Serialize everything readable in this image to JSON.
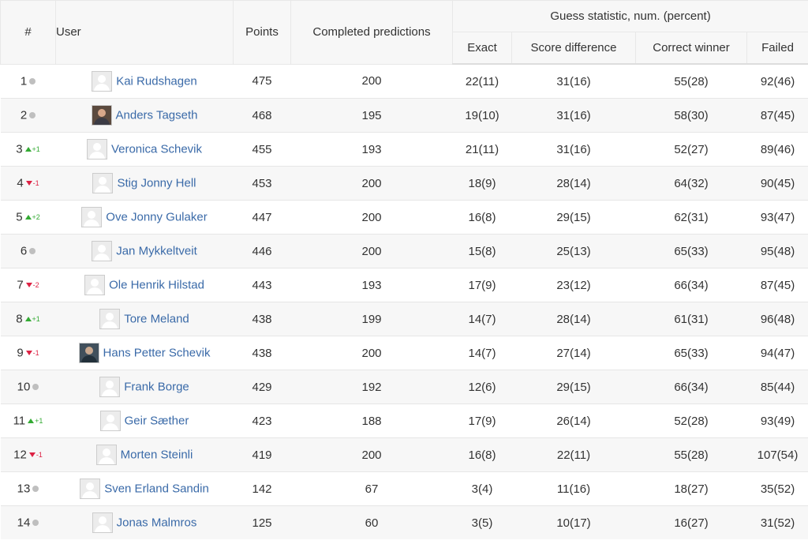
{
  "header": {
    "rank": "#",
    "user": "User",
    "points": "Points",
    "completed": "Completed predictions",
    "guess_group": "Guess statistic, num. (percent)",
    "exact": "Exact",
    "score_diff": "Score difference",
    "correct_winner": "Correct winner",
    "failed": "Failed"
  },
  "colors": {
    "up": "#33aa33",
    "down": "#dd2244",
    "same": "#bfbfbf",
    "link": "#3a6aa8"
  },
  "rows": [
    {
      "rank": "1",
      "trend": "same",
      "delta": "",
      "avatar": "default",
      "name": "Kai Rudshagen",
      "points": "475",
      "completed": "200",
      "exact": "22(11)",
      "score_diff": "31(16)",
      "winner": "55(28)",
      "failed": "92(46)"
    },
    {
      "rank": "2",
      "trend": "same",
      "delta": "",
      "avatar": "photo",
      "name": "Anders Tagseth",
      "points": "468",
      "completed": "195",
      "exact": "19(10)",
      "score_diff": "31(16)",
      "winner": "58(30)",
      "failed": "87(45)"
    },
    {
      "rank": "3",
      "trend": "up",
      "delta": "+1",
      "avatar": "default",
      "name": "Veronica Schevik",
      "points": "455",
      "completed": "193",
      "exact": "21(11)",
      "score_diff": "31(16)",
      "winner": "52(27)",
      "failed": "89(46)"
    },
    {
      "rank": "4",
      "trend": "down",
      "delta": "-1",
      "avatar": "default",
      "name": "Stig Jonny Hell",
      "points": "453",
      "completed": "200",
      "exact": "18(9)",
      "score_diff": "28(14)",
      "winner": "64(32)",
      "failed": "90(45)"
    },
    {
      "rank": "5",
      "trend": "up",
      "delta": "+2",
      "avatar": "default",
      "name": "Ove Jonny Gulaker",
      "points": "447",
      "completed": "200",
      "exact": "16(8)",
      "score_diff": "29(15)",
      "winner": "62(31)",
      "failed": "93(47)"
    },
    {
      "rank": "6",
      "trend": "same",
      "delta": "",
      "avatar": "default",
      "name": "Jan Mykkeltveit",
      "points": "446",
      "completed": "200",
      "exact": "15(8)",
      "score_diff": "25(13)",
      "winner": "65(33)",
      "failed": "95(48)"
    },
    {
      "rank": "7",
      "trend": "down",
      "delta": "-2",
      "avatar": "default",
      "name": "Ole Henrik Hilstad",
      "points": "443",
      "completed": "193",
      "exact": "17(9)",
      "score_diff": "23(12)",
      "winner": "66(34)",
      "failed": "87(45)"
    },
    {
      "rank": "8",
      "trend": "up",
      "delta": "+1",
      "avatar": "default",
      "name": "Tore Meland",
      "points": "438",
      "completed": "199",
      "exact": "14(7)",
      "score_diff": "28(14)",
      "winner": "61(31)",
      "failed": "96(48)"
    },
    {
      "rank": "9",
      "trend": "down",
      "delta": "-1",
      "avatar": "photo2",
      "name": "Hans Petter Schevik",
      "points": "438",
      "completed": "200",
      "exact": "14(7)",
      "score_diff": "27(14)",
      "winner": "65(33)",
      "failed": "94(47)"
    },
    {
      "rank": "10",
      "trend": "same",
      "delta": "",
      "avatar": "default",
      "name": "Frank Borge",
      "points": "429",
      "completed": "192",
      "exact": "12(6)",
      "score_diff": "29(15)",
      "winner": "66(34)",
      "failed": "85(44)"
    },
    {
      "rank": "11",
      "trend": "up",
      "delta": "+1",
      "avatar": "default",
      "name": "Geir Sæther",
      "points": "423",
      "completed": "188",
      "exact": "17(9)",
      "score_diff": "26(14)",
      "winner": "52(28)",
      "failed": "93(49)"
    },
    {
      "rank": "12",
      "trend": "down",
      "delta": "-1",
      "avatar": "default",
      "name": "Morten Steinli",
      "points": "419",
      "completed": "200",
      "exact": "16(8)",
      "score_diff": "22(11)",
      "winner": "55(28)",
      "failed": "107(54)"
    },
    {
      "rank": "13",
      "trend": "same",
      "delta": "",
      "avatar": "default",
      "name": "Sven Erland Sandin",
      "points": "142",
      "completed": "67",
      "exact": "3(4)",
      "score_diff": "11(16)",
      "winner": "18(27)",
      "failed": "35(52)"
    },
    {
      "rank": "14",
      "trend": "same",
      "delta": "",
      "avatar": "default",
      "name": "Jonas Malmros",
      "points": "125",
      "completed": "60",
      "exact": "3(5)",
      "score_diff": "10(17)",
      "winner": "16(27)",
      "failed": "31(52)"
    }
  ]
}
